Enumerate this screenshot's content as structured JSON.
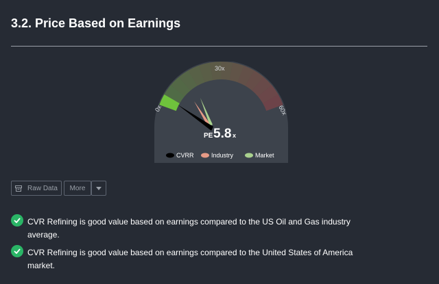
{
  "section": {
    "title": "3.2. Price Based on Earnings"
  },
  "gauge": {
    "min_label": "0x",
    "mid_label": "30x",
    "max_label": "60x",
    "pe_prefix": "PE",
    "pe_value": "5.8",
    "pe_suffix": "x",
    "needle_value": 5.8,
    "range_max": 60,
    "legend": [
      {
        "label": "CVRR",
        "color": "#000000"
      },
      {
        "label": "Industry",
        "color": "#e69a86"
      },
      {
        "label": "Market",
        "color": "#a9d18e"
      }
    ],
    "colors": {
      "low": "#6fc23c",
      "high": "#c94545",
      "bg": "#3a4049"
    }
  },
  "buttons": {
    "raw_data": "Raw Data",
    "more": "More"
  },
  "checks": [
    {
      "text": "CVR Refining is good value based on earnings compared to the US Oil and Gas industry average."
    },
    {
      "text": "CVR Refining is good value based on earnings compared to the United States of America market."
    }
  ]
}
